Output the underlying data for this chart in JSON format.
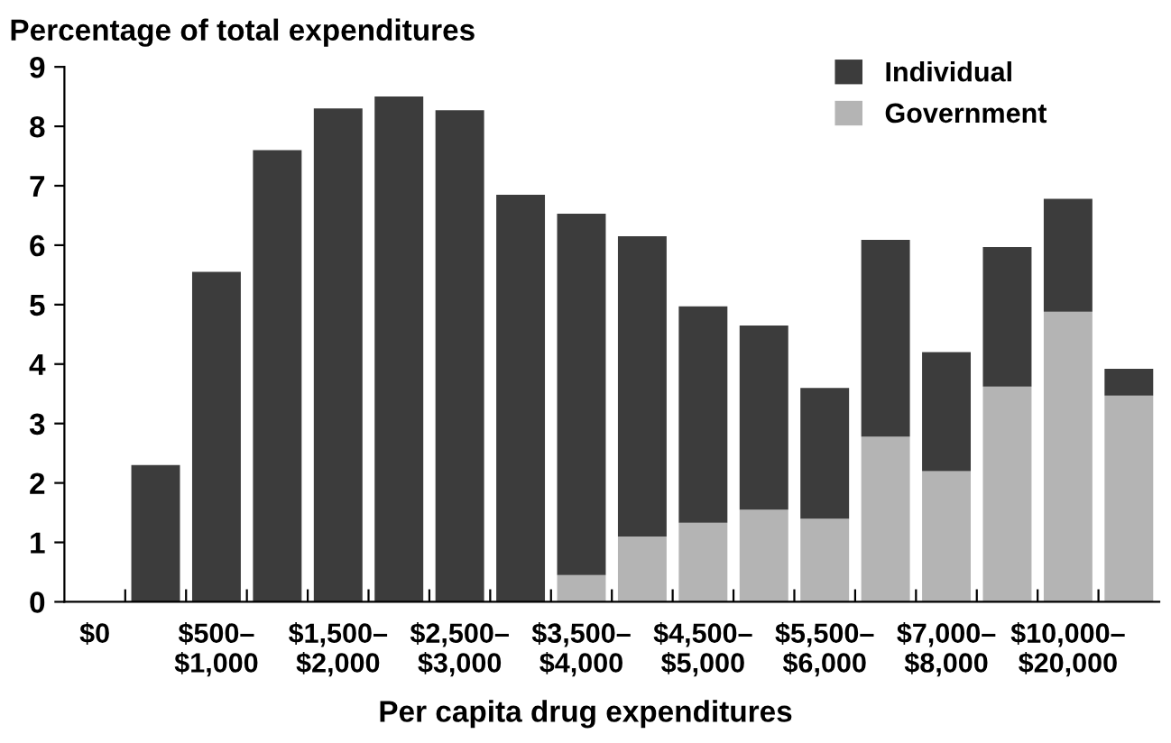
{
  "chart_data": {
    "type": "bar",
    "stacked": true,
    "ylabel": "Percentage of total expenditures",
    "xlabel": "Per capita drug expenditures",
    "categories": [
      "$0",
      null,
      "$500–\n$1,000",
      null,
      "$1,500–\n$2,000",
      null,
      "$2,500–\n$3,000",
      null,
      "$3,500–\n$4,000",
      null,
      "$4,500–\n$5,000",
      null,
      "$5,500–\n$6,000",
      null,
      "$7,000–\n$8,000",
      null,
      "$10,000–\n$20,000",
      null
    ],
    "series": [
      {
        "name": "Government",
        "color": "#b4b4b4",
        "values": [
          0,
          0,
          0,
          0,
          0,
          0,
          0,
          0,
          0.45,
          1.1,
          1.33,
          1.55,
          1.4,
          2.78,
          2.2,
          3.62,
          4.88,
          3.47
        ]
      },
      {
        "name": "Individual",
        "color": "#3c3c3c",
        "values": [
          0,
          2.3,
          5.55,
          7.6,
          8.3,
          8.5,
          8.27,
          6.85,
          6.08,
          5.05,
          3.64,
          3.1,
          2.2,
          3.31,
          2.0,
          2.35,
          1.9,
          0.45
        ]
      }
    ],
    "ylim": [
      0,
      9
    ],
    "yticks": [
      0,
      1,
      2,
      3,
      4,
      5,
      6,
      7,
      8,
      9
    ],
    "grid": false,
    "legend": "top right"
  }
}
